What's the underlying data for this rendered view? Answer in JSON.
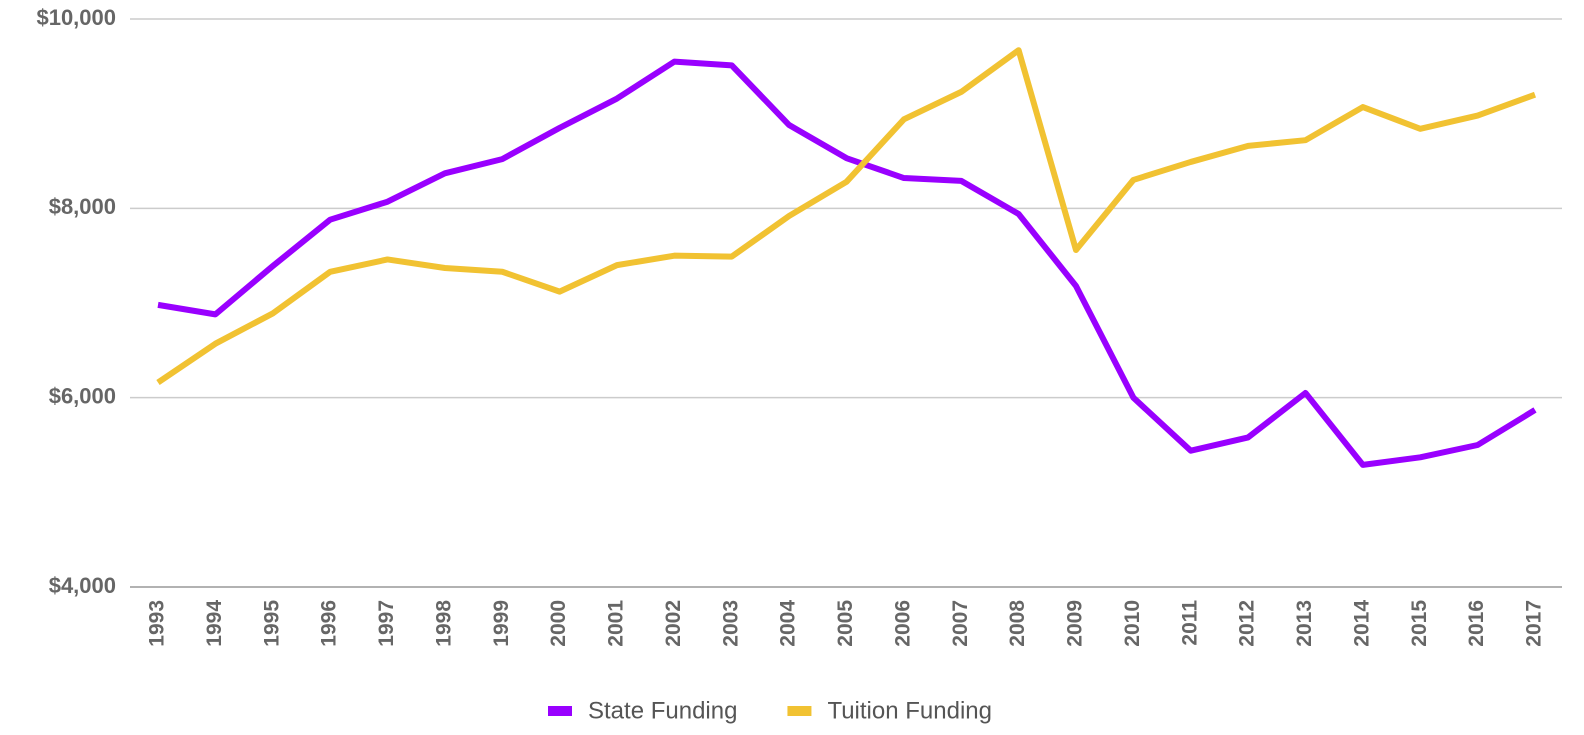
{
  "chart_data": {
    "type": "line",
    "categories": [
      "1993",
      "1994",
      "1995",
      "1996",
      "1997",
      "1998",
      "1999",
      "2000",
      "2001",
      "2002",
      "2003",
      "2004",
      "2005",
      "2006",
      "2007",
      "2008",
      "2009",
      "2010",
      "2011",
      "2012",
      "2013",
      "2014",
      "2015",
      "2016",
      "2017"
    ],
    "series": [
      {
        "name": "State Funding",
        "color": "#9900ff",
        "values": [
          6980,
          6880,
          7390,
          7880,
          8070,
          8370,
          8520,
          8850,
          9160,
          9550,
          9510,
          8880,
          8530,
          8320,
          8290,
          7940,
          7180,
          6000,
          5440,
          5580,
          6050,
          5290,
          5370,
          5500,
          5870
        ]
      },
      {
        "name": "Tuition Funding",
        "color": "#f1c232",
        "values": [
          6160,
          6570,
          6890,
          7330,
          7460,
          7370,
          7330,
          7120,
          7400,
          7500,
          7490,
          7920,
          8280,
          8940,
          9230,
          9670,
          7560,
          8300,
          8490,
          8660,
          8720,
          9070,
          8840,
          8980,
          9200
        ]
      }
    ],
    "ylim": [
      4000,
      10000
    ],
    "yticks": [
      {
        "value": 4000,
        "label": "$4,000"
      },
      {
        "value": 6000,
        "label": "$6,000"
      },
      {
        "value": 8000,
        "label": "$8,000"
      },
      {
        "value": 10000,
        "label": "$10,000"
      }
    ],
    "grid": true,
    "legend": "bottom"
  }
}
